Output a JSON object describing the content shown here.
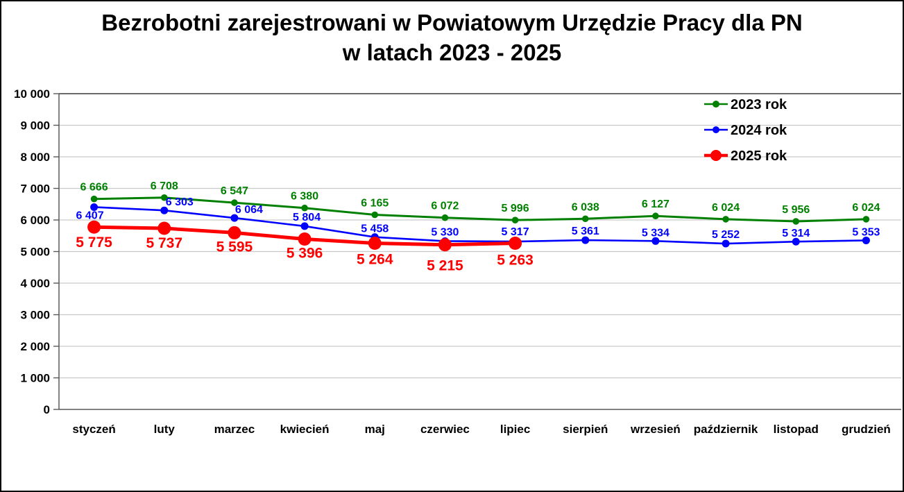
{
  "title": {
    "line1": "Bezrobotni zarejestrowani w Powiatowym Urzędzie Pracy dla PN",
    "line2": "w latach 2023 - 2025"
  },
  "chart_data": {
    "type": "line",
    "title": "Bezrobotni zarejestrowani w Powiatowym Urzędzie Pracy dla PN w latach 2023 - 2025",
    "categories": [
      "styczeń",
      "luty",
      "marzec",
      "kwiecień",
      "maj",
      "czerwiec",
      "lipiec",
      "sierpień",
      "wrzesień",
      "październik",
      "listopad",
      "grudzień"
    ],
    "series": [
      {
        "name": "2023 rok",
        "color": "#008000",
        "values": [
          6666,
          6708,
          6547,
          6380,
          6165,
          6072,
          5996,
          6038,
          6127,
          6024,
          5956,
          6024
        ],
        "label_position": "above"
      },
      {
        "name": "2024 rok",
        "color": "#0000FF",
        "values": [
          6407,
          6303,
          6064,
          5804,
          5458,
          5330,
          5317,
          5361,
          5334,
          5252,
          5314,
          5353
        ],
        "label_position": "above"
      },
      {
        "name": "2025 rok",
        "color": "#FF0000",
        "values": [
          5775,
          5737,
          5595,
          5396,
          5264,
          5215,
          5263
        ],
        "label_position": "below"
      }
    ],
    "ylim": [
      0,
      10000
    ],
    "ytick_step": 1000,
    "y_tick_labels": [
      "0",
      "1 000",
      "2 000",
      "3 000",
      "4 000",
      "5 000",
      "6 000",
      "7 000",
      "8 000",
      "9 000",
      "10 000"
    ],
    "grid": true,
    "legend_position": "top-right",
    "legend": [
      "2023 rok",
      "2024 rok",
      "2025 rok"
    ]
  },
  "colors": {
    "gridline": "#C9C9C9",
    "grid_top": "#6B6B6B",
    "axis": "#595959",
    "text": "#000000",
    "background": "#FFFFFF",
    "frame_border": "#000000"
  }
}
